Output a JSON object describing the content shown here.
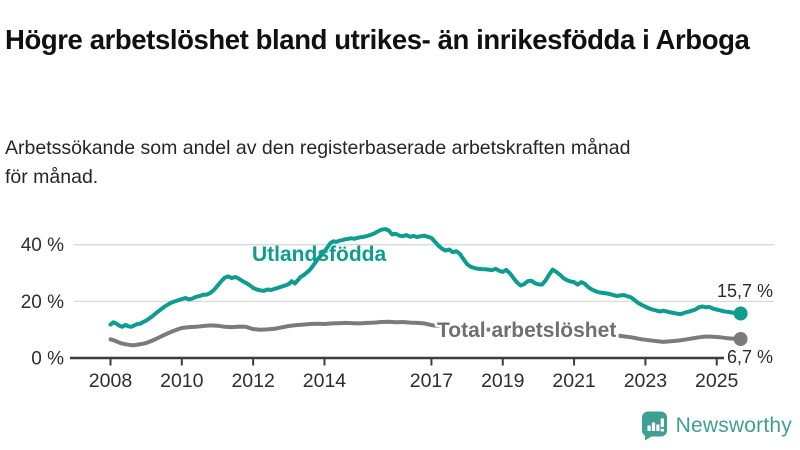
{
  "title": "Högre arbetslöshet bland utrikes- än inrikesfödda i Arboga",
  "subtitle": "Arbetssökande som andel av den registerbaserade arbetskraften månad för månad.",
  "brand": {
    "name": "Newsworthy",
    "color": "#3f9f93",
    "icon": "bar-chart-speech-bubble-icon"
  },
  "chart_data": {
    "type": "line",
    "title": "Högre arbetslöshet bland utrikes- än inrikesfödda i Arboga",
    "subtitle": "Arbetssökande som andel av den registerbaserade arbetskraften månad för månad.",
    "xlabel": "",
    "ylabel": "",
    "x_axis": {
      "ticks": [
        2008,
        2010,
        2012,
        2014,
        2017,
        2019,
        2021,
        2023,
        2025
      ],
      "range": [
        2008,
        2025.9
      ]
    },
    "y_axis": {
      "ticks": [
        "0 %",
        "20 %",
        "40 %"
      ],
      "tick_values": [
        0,
        20,
        40
      ],
      "ylim": [
        0,
        48
      ]
    },
    "grid": "horizontal",
    "legend_position": "inline-labels",
    "colors": {
      "grid": "#d9d9d9",
      "axis": "#3d3d3d",
      "tick_text": "#2e2e2e",
      "value_label": "#2b2b2b"
    },
    "series": [
      {
        "name": "Utlandsfödda",
        "color": "#0d9c8d",
        "end_label": "15,7 %",
        "end_value": 15.7,
        "points": [
          [
            2008.0,
            11.8
          ],
          [
            2008.08,
            12.6
          ],
          [
            2008.17,
            12.1
          ],
          [
            2008.25,
            11.4
          ],
          [
            2008.33,
            11.0
          ],
          [
            2008.42,
            11.7
          ],
          [
            2008.5,
            11.2
          ],
          [
            2008.58,
            11.0
          ],
          [
            2008.67,
            11.5
          ],
          [
            2008.75,
            12.0
          ],
          [
            2008.83,
            12.1
          ],
          [
            2008.92,
            12.7
          ],
          [
            2009.0,
            13.2
          ],
          [
            2009.1,
            14.1
          ],
          [
            2009.2,
            15.0
          ],
          [
            2009.3,
            16.1
          ],
          [
            2009.4,
            17.0
          ],
          [
            2009.5,
            18.0
          ],
          [
            2009.6,
            18.8
          ],
          [
            2009.7,
            19.5
          ],
          [
            2009.8,
            20.0
          ],
          [
            2009.9,
            20.4
          ],
          [
            2010.0,
            20.8
          ],
          [
            2010.1,
            21.2
          ],
          [
            2010.2,
            20.7
          ],
          [
            2010.3,
            21.0
          ],
          [
            2010.4,
            21.6
          ],
          [
            2010.5,
            21.9
          ],
          [
            2010.6,
            22.3
          ],
          [
            2010.7,
            22.4
          ],
          [
            2010.8,
            23.0
          ],
          [
            2010.9,
            24.0
          ],
          [
            2011.0,
            25.5
          ],
          [
            2011.1,
            27.0
          ],
          [
            2011.2,
            28.3
          ],
          [
            2011.3,
            28.8
          ],
          [
            2011.4,
            28.2
          ],
          [
            2011.5,
            28.6
          ],
          [
            2011.6,
            28.0
          ],
          [
            2011.7,
            27.2
          ],
          [
            2011.8,
            26.5
          ],
          [
            2011.9,
            25.7
          ],
          [
            2012.0,
            24.8
          ],
          [
            2012.1,
            24.2
          ],
          [
            2012.2,
            23.9
          ],
          [
            2012.3,
            23.7
          ],
          [
            2012.4,
            24.2
          ],
          [
            2012.5,
            24.0
          ],
          [
            2012.6,
            24.4
          ],
          [
            2012.7,
            24.8
          ],
          [
            2012.8,
            25.2
          ],
          [
            2012.9,
            25.6
          ],
          [
            2013.0,
            26.1
          ],
          [
            2013.08,
            27.1
          ],
          [
            2013.17,
            26.3
          ],
          [
            2013.25,
            27.4
          ],
          [
            2013.33,
            28.6
          ],
          [
            2013.42,
            29.3
          ],
          [
            2013.5,
            30.1
          ],
          [
            2013.58,
            31.0
          ],
          [
            2013.67,
            32.4
          ],
          [
            2013.75,
            33.8
          ],
          [
            2013.83,
            35.2
          ],
          [
            2013.92,
            36.4
          ],
          [
            2014.0,
            37.6
          ],
          [
            2014.08,
            39.0
          ],
          [
            2014.17,
            40.6
          ],
          [
            2014.25,
            41.2
          ],
          [
            2014.33,
            41.0
          ],
          [
            2014.42,
            41.4
          ],
          [
            2014.5,
            41.6
          ],
          [
            2014.58,
            41.9
          ],
          [
            2014.67,
            42.1
          ],
          [
            2014.75,
            42.3
          ],
          [
            2014.83,
            42.1
          ],
          [
            2014.92,
            42.4
          ],
          [
            2015.0,
            42.6
          ],
          [
            2015.1,
            42.8
          ],
          [
            2015.2,
            43.1
          ],
          [
            2015.3,
            43.5
          ],
          [
            2015.4,
            44.0
          ],
          [
            2015.5,
            44.7
          ],
          [
            2015.6,
            45.3
          ],
          [
            2015.7,
            45.5
          ],
          [
            2015.8,
            45.1
          ],
          [
            2015.9,
            43.6
          ],
          [
            2016.0,
            43.9
          ],
          [
            2016.1,
            43.2
          ],
          [
            2016.2,
            43.0
          ],
          [
            2016.3,
            43.4
          ],
          [
            2016.4,
            42.8
          ],
          [
            2016.5,
            43.1
          ],
          [
            2016.6,
            42.7
          ],
          [
            2016.7,
            43.0
          ],
          [
            2016.8,
            43.2
          ],
          [
            2016.9,
            42.8
          ],
          [
            2017.0,
            42.4
          ],
          [
            2017.1,
            41.0
          ],
          [
            2017.2,
            39.6
          ],
          [
            2017.3,
            38.6
          ],
          [
            2017.4,
            37.9
          ],
          [
            2017.5,
            38.3
          ],
          [
            2017.6,
            37.3
          ],
          [
            2017.7,
            37.7
          ],
          [
            2017.8,
            36.7
          ],
          [
            2017.9,
            34.9
          ],
          [
            2018.0,
            33.1
          ],
          [
            2018.1,
            32.2
          ],
          [
            2018.2,
            31.8
          ],
          [
            2018.3,
            31.5
          ],
          [
            2018.4,
            31.4
          ],
          [
            2018.5,
            31.3
          ],
          [
            2018.6,
            31.2
          ],
          [
            2018.7,
            31.0
          ],
          [
            2018.8,
            31.5
          ],
          [
            2018.9,
            30.8
          ],
          [
            2019.0,
            30.4
          ],
          [
            2019.1,
            31.1
          ],
          [
            2019.2,
            29.9
          ],
          [
            2019.3,
            28.2
          ],
          [
            2019.4,
            26.7
          ],
          [
            2019.5,
            25.6
          ],
          [
            2019.6,
            26.1
          ],
          [
            2019.7,
            27.1
          ],
          [
            2019.8,
            27.3
          ],
          [
            2019.9,
            26.4
          ],
          [
            2020.0,
            26.0
          ],
          [
            2020.1,
            25.9
          ],
          [
            2020.2,
            27.4
          ],
          [
            2020.3,
            29.4
          ],
          [
            2020.4,
            31.2
          ],
          [
            2020.5,
            30.4
          ],
          [
            2020.6,
            29.4
          ],
          [
            2020.7,
            28.2
          ],
          [
            2020.8,
            27.5
          ],
          [
            2020.9,
            27.0
          ],
          [
            2021.0,
            26.8
          ],
          [
            2021.1,
            25.9
          ],
          [
            2021.2,
            26.8
          ],
          [
            2021.3,
            26.2
          ],
          [
            2021.4,
            25.0
          ],
          [
            2021.5,
            24.2
          ],
          [
            2021.6,
            23.6
          ],
          [
            2021.7,
            23.2
          ],
          [
            2021.8,
            23.0
          ],
          [
            2021.9,
            22.8
          ],
          [
            2022.0,
            22.6
          ],
          [
            2022.1,
            22.2
          ],
          [
            2022.2,
            21.9
          ],
          [
            2022.3,
            22.1
          ],
          [
            2022.4,
            22.2
          ],
          [
            2022.5,
            21.8
          ],
          [
            2022.6,
            21.4
          ],
          [
            2022.7,
            20.4
          ],
          [
            2022.8,
            19.4
          ],
          [
            2022.9,
            18.7
          ],
          [
            2023.0,
            18.1
          ],
          [
            2023.1,
            17.5
          ],
          [
            2023.2,
            17.1
          ],
          [
            2023.3,
            16.8
          ],
          [
            2023.4,
            16.4
          ],
          [
            2023.5,
            16.7
          ],
          [
            2023.6,
            16.4
          ],
          [
            2023.7,
            16.1
          ],
          [
            2023.8,
            15.9
          ],
          [
            2023.9,
            15.6
          ],
          [
            2024.0,
            15.5
          ],
          [
            2024.1,
            16.0
          ],
          [
            2024.2,
            16.3
          ],
          [
            2024.3,
            16.7
          ],
          [
            2024.4,
            17.1
          ],
          [
            2024.5,
            17.9
          ],
          [
            2024.6,
            18.2
          ],
          [
            2024.7,
            17.9
          ],
          [
            2024.8,
            18.0
          ],
          [
            2024.9,
            17.4
          ],
          [
            2025.0,
            17.1
          ],
          [
            2025.1,
            16.8
          ],
          [
            2025.2,
            16.5
          ],
          [
            2025.3,
            16.3
          ],
          [
            2025.4,
            16.1
          ],
          [
            2025.5,
            15.9
          ],
          [
            2025.58,
            15.8
          ],
          [
            2025.67,
            15.7
          ]
        ]
      },
      {
        "name": "Total arbetslöshet",
        "color": "#7b7b7b",
        "end_label": "6,7 %",
        "end_value": 6.7,
        "points": [
          [
            2008.0,
            6.6
          ],
          [
            2008.1,
            6.2
          ],
          [
            2008.2,
            5.7
          ],
          [
            2008.3,
            5.2
          ],
          [
            2008.4,
            4.9
          ],
          [
            2008.5,
            4.7
          ],
          [
            2008.6,
            4.5
          ],
          [
            2008.7,
            4.6
          ],
          [
            2008.8,
            4.8
          ],
          [
            2008.9,
            5.0
          ],
          [
            2009.0,
            5.3
          ],
          [
            2009.1,
            5.8
          ],
          [
            2009.2,
            6.3
          ],
          [
            2009.3,
            6.9
          ],
          [
            2009.4,
            7.5
          ],
          [
            2009.5,
            8.1
          ],
          [
            2009.6,
            8.7
          ],
          [
            2009.7,
            9.2
          ],
          [
            2009.8,
            9.7
          ],
          [
            2009.9,
            10.2
          ],
          [
            2010.0,
            10.6
          ],
          [
            2010.2,
            10.9
          ],
          [
            2010.4,
            11.0
          ],
          [
            2010.6,
            11.3
          ],
          [
            2010.8,
            11.5
          ],
          [
            2011.0,
            11.4
          ],
          [
            2011.2,
            11.0
          ],
          [
            2011.4,
            10.9
          ],
          [
            2011.6,
            11.1
          ],
          [
            2011.8,
            11.0
          ],
          [
            2012.0,
            10.2
          ],
          [
            2012.2,
            10.0
          ],
          [
            2012.4,
            10.1
          ],
          [
            2012.6,
            10.3
          ],
          [
            2012.8,
            10.8
          ],
          [
            2013.0,
            11.3
          ],
          [
            2013.2,
            11.6
          ],
          [
            2013.4,
            11.8
          ],
          [
            2013.6,
            12.0
          ],
          [
            2013.8,
            12.1
          ],
          [
            2014.0,
            12.0
          ],
          [
            2014.2,
            12.2
          ],
          [
            2014.4,
            12.3
          ],
          [
            2014.6,
            12.4
          ],
          [
            2014.8,
            12.3
          ],
          [
            2015.0,
            12.2
          ],
          [
            2015.2,
            12.4
          ],
          [
            2015.4,
            12.5
          ],
          [
            2015.6,
            12.7
          ],
          [
            2015.8,
            12.8
          ],
          [
            2016.0,
            12.6
          ],
          [
            2016.2,
            12.7
          ],
          [
            2016.4,
            12.5
          ],
          [
            2016.6,
            12.4
          ],
          [
            2016.8,
            12.2
          ],
          [
            2017.0,
            11.6
          ],
          [
            2017.2,
            11.3
          ],
          [
            2017.4,
            11.2
          ],
          [
            2017.7,
            11.0
          ],
          [
            2018.0,
            10.6
          ],
          [
            2018.5,
            10.1
          ],
          [
            2019.0,
            9.7
          ],
          [
            2019.5,
            9.3
          ],
          [
            2019.8,
            9.4
          ],
          [
            2020.1,
            9.8
          ],
          [
            2020.4,
            10.3
          ],
          [
            2020.7,
            10.0
          ],
          [
            2021.0,
            9.4
          ],
          [
            2021.5,
            8.8
          ],
          [
            2022.0,
            8.2
          ],
          [
            2022.3,
            7.8
          ],
          [
            2022.6,
            7.3
          ],
          [
            2022.9,
            6.6
          ],
          [
            2023.2,
            6.1
          ],
          [
            2023.5,
            5.7
          ],
          [
            2023.8,
            6.0
          ],
          [
            2024.0,
            6.3
          ],
          [
            2024.3,
            6.9
          ],
          [
            2024.5,
            7.3
          ],
          [
            2024.7,
            7.6
          ],
          [
            2024.9,
            7.5
          ],
          [
            2025.1,
            7.3
          ],
          [
            2025.3,
            7.0
          ],
          [
            2025.5,
            6.8
          ],
          [
            2025.67,
            6.7
          ]
        ]
      }
    ]
  }
}
